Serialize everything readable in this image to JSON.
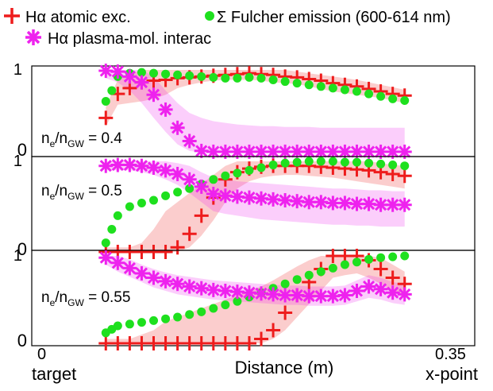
{
  "legend": {
    "items": [
      {
        "name": "Hα atomic exc.",
        "color": "#ee1c1c",
        "marker": "plus-icon"
      },
      {
        "name": "Σ Fulcher emission (600-614 nm)",
        "color": "#1ee01e",
        "marker": "circle-icon"
      },
      {
        "name": "Hα plasma-mol. interac",
        "color": "#ee22ee",
        "marker": "asterisk-icon"
      }
    ]
  },
  "axes": {
    "xlabel": "Distance (m)",
    "x_start_label": "0",
    "x_end_label": "0.35",
    "x_start_note": "target",
    "x_end_note": "x-point",
    "xlim": [
      0,
      0.35
    ],
    "ylim": [
      0,
      1
    ]
  },
  "chart_data": [
    {
      "type": "line",
      "panel_label": {
        "n": "n",
        "n_sub": "e",
        "slash": "/",
        "ngw": "n",
        "ngw_sub": "GW",
        "eq": " = 0.4"
      },
      "ytick_top": "1",
      "ytick_bottom": "0",
      "series": [
        {
          "name": "Hα atomic exc.",
          "color": "#ee1c1c",
          "x": [
            0.05,
            0.06,
            0.07,
            0.08,
            0.09,
            0.1,
            0.11,
            0.12,
            0.13,
            0.14,
            0.15,
            0.16,
            0.17,
            0.18,
            0.19,
            0.2,
            0.21,
            0.22,
            0.23,
            0.24,
            0.25,
            0.26,
            0.27,
            0.28,
            0.29,
            0.3
          ],
          "y": [
            0.42,
            0.71,
            0.78,
            0.85,
            0.87,
            0.88,
            0.9,
            0.91,
            0.92,
            0.93,
            0.94,
            0.95,
            0.96,
            0.95,
            0.94,
            0.92,
            0.91,
            0.89,
            0.87,
            0.84,
            0.82,
            0.8,
            0.77,
            0.74,
            0.71,
            0.69
          ],
          "band_low": [
            0.32,
            0.58,
            0.6,
            0.62,
            0.65,
            0.7,
            0.78,
            0.82,
            0.85,
            0.87,
            0.88,
            0.88,
            0.88,
            0.87,
            0.85,
            0.84,
            0.83,
            0.8,
            0.77,
            0.74,
            0.72,
            0.7,
            0.68,
            0.66,
            0.63,
            0.6
          ],
          "band_high": [
            0.55,
            0.88,
            0.95,
            1.0,
            1.0,
            1.0,
            1.0,
            1.0,
            1.0,
            1.0,
            1.0,
            1.0,
            1.0,
            1.0,
            1.0,
            1.0,
            0.98,
            0.96,
            0.94,
            0.92,
            0.9,
            0.88,
            0.85,
            0.82,
            0.79,
            0.76
          ]
        },
        {
          "name": "Σ Fulcher emission (600-614 nm)",
          "color": "#1ee01e",
          "x": [
            0.05,
            0.055,
            0.06,
            0.07,
            0.08,
            0.09,
            0.1,
            0.11,
            0.12,
            0.13,
            0.14,
            0.15,
            0.16,
            0.17,
            0.18,
            0.19,
            0.2,
            0.21,
            0.22,
            0.23,
            0.24,
            0.25,
            0.26,
            0.27,
            0.28,
            0.29,
            0.3
          ],
          "y": [
            0.62,
            0.75,
            0.92,
            0.96,
            0.97,
            0.96,
            0.95,
            0.94,
            0.93,
            0.92,
            0.91,
            0.9,
            0.9,
            0.91,
            0.9,
            0.88,
            0.86,
            0.84,
            0.82,
            0.8,
            0.78,
            0.76,
            0.74,
            0.71,
            0.68,
            0.65,
            0.63
          ]
        },
        {
          "name": "Hα plasma-mol. interac",
          "color": "#ee22ee",
          "x": [
            0.05,
            0.06,
            0.07,
            0.08,
            0.09,
            0.1,
            0.11,
            0.12,
            0.13,
            0.14,
            0.15,
            0.16,
            0.17,
            0.18,
            0.19,
            0.2,
            0.21,
            0.22,
            0.23,
            0.24,
            0.25,
            0.26,
            0.27,
            0.28,
            0.29,
            0.3
          ],
          "y": [
            0.99,
            0.98,
            0.92,
            0.85,
            0.7,
            0.52,
            0.3,
            0.14,
            0.02,
            0.01,
            0.01,
            0.01,
            0.01,
            0.01,
            0.01,
            0.01,
            0.01,
            0.01,
            0.01,
            0.01,
            0.01,
            0.01,
            0.01,
            0.01,
            0.01,
            0.01
          ],
          "band_low": [
            0.9,
            0.85,
            0.75,
            0.6,
            0.42,
            0.25,
            0.1,
            0.02,
            0.0,
            0.0,
            0.0,
            0.0,
            0.0,
            0.0,
            0.0,
            0.0,
            0.0,
            0.0,
            0.0,
            0.0,
            0.0,
            0.0,
            0.0,
            0.0,
            0.0,
            0.0
          ],
          "band_high": [
            1.0,
            1.0,
            1.0,
            1.0,
            0.92,
            0.75,
            0.6,
            0.48,
            0.42,
            0.38,
            0.36,
            0.34,
            0.33,
            0.32,
            0.32,
            0.31,
            0.31,
            0.31,
            0.3,
            0.3,
            0.3,
            0.3,
            0.3,
            0.3,
            0.3,
            0.3
          ]
        }
      ]
    },
    {
      "type": "line",
      "panel_label": {
        "n": "n",
        "n_sub": "e",
        "slash": "/",
        "ngw": "n",
        "ngw_sub": "GW",
        "eq": " = 0.5"
      },
      "ytick_top": "1",
      "ytick_bottom": "0",
      "series": [
        {
          "name": "Hα atomic exc.",
          "color": "#ee1c1c",
          "x": [
            0.05,
            0.06,
            0.07,
            0.08,
            0.09,
            0.1,
            0.11,
            0.12,
            0.13,
            0.14,
            0.15,
            0.16,
            0.17,
            0.18,
            0.19,
            0.2,
            0.21,
            0.22,
            0.23,
            0.24,
            0.25,
            0.26,
            0.27,
            0.28,
            0.29,
            0.3
          ],
          "y": [
            0.0,
            0.0,
            0.0,
            0.0,
            0.0,
            0.0,
            0.05,
            0.2,
            0.4,
            0.6,
            0.8,
            0.88,
            0.92,
            0.94,
            0.95,
            0.95,
            0.95,
            0.95,
            0.94,
            0.93,
            0.92,
            0.91,
            0.9,
            0.88,
            0.86,
            0.84
          ],
          "band_low": [
            0.0,
            0.0,
            0.0,
            0.0,
            0.0,
            0.0,
            0.0,
            0.05,
            0.18,
            0.35,
            0.55,
            0.7,
            0.78,
            0.82,
            0.84,
            0.85,
            0.85,
            0.84,
            0.83,
            0.82,
            0.8,
            0.78,
            0.76,
            0.74,
            0.72,
            0.7
          ],
          "band_high": [
            0.05,
            0.05,
            0.05,
            0.1,
            0.25,
            0.45,
            0.55,
            0.65,
            0.75,
            0.85,
            0.95,
            1.0,
            1.0,
            1.0,
            1.0,
            1.0,
            1.0,
            1.0,
            1.0,
            1.0,
            1.0,
            1.0,
            1.0,
            0.98,
            0.96,
            0.95
          ]
        },
        {
          "name": "Σ Fulcher emission (600-614 nm)",
          "color": "#1ee01e",
          "x": [
            0.05,
            0.055,
            0.06,
            0.07,
            0.08,
            0.09,
            0.1,
            0.11,
            0.12,
            0.13,
            0.14,
            0.15,
            0.16,
            0.17,
            0.18,
            0.19,
            0.2,
            0.21,
            0.22,
            0.23,
            0.24,
            0.25,
            0.26,
            0.27,
            0.28,
            0.29,
            0.3
          ],
          "y": [
            0.1,
            0.25,
            0.4,
            0.5,
            0.54,
            0.57,
            0.62,
            0.66,
            0.7,
            0.75,
            0.8,
            0.84,
            0.87,
            0.9,
            0.93,
            0.96,
            0.98,
            0.99,
            1.0,
            1.0,
            1.0,
            0.99,
            0.99,
            0.98,
            0.97,
            0.96,
            0.95
          ]
        },
        {
          "name": "Hα plasma-mol. interac",
          "color": "#ee22ee",
          "x": [
            0.05,
            0.06,
            0.07,
            0.08,
            0.09,
            0.1,
            0.11,
            0.12,
            0.13,
            0.14,
            0.15,
            0.16,
            0.17,
            0.18,
            0.19,
            0.2,
            0.21,
            0.22,
            0.23,
            0.24,
            0.25,
            0.26,
            0.27,
            0.28,
            0.29,
            0.3
          ],
          "y": [
            0.95,
            0.96,
            0.96,
            0.95,
            0.93,
            0.9,
            0.86,
            0.8,
            0.72,
            0.64,
            0.62,
            0.61,
            0.6,
            0.59,
            0.58,
            0.57,
            0.56,
            0.55,
            0.55,
            0.54,
            0.54,
            0.53,
            0.53,
            0.52,
            0.52,
            0.52
          ],
          "band_low": [
            0.9,
            0.9,
            0.9,
            0.88,
            0.85,
            0.8,
            0.74,
            0.65,
            0.55,
            0.45,
            0.42,
            0.4,
            0.38,
            0.36,
            0.35,
            0.34,
            0.33,
            0.32,
            0.31,
            0.3,
            0.3,
            0.29,
            0.29,
            0.28,
            0.28,
            0.28
          ],
          "band_high": [
            1.0,
            1.0,
            1.0,
            1.0,
            1.0,
            1.0,
            0.98,
            0.95,
            0.88,
            0.82,
            0.8,
            0.78,
            0.77,
            0.76,
            0.75,
            0.74,
            0.73,
            0.72,
            0.71,
            0.7,
            0.7,
            0.69,
            0.68,
            0.68,
            0.67,
            0.67
          ]
        }
      ]
    },
    {
      "type": "line",
      "panel_label": {
        "n": "n",
        "n_sub": "e",
        "slash": "/",
        "ngw": "n",
        "ngw_sub": "GW",
        "eq": " = 0.55"
      },
      "ytick_top": "1",
      "ytick_bottom": "0",
      "series": [
        {
          "name": "Hα atomic exc.",
          "color": "#ee1c1c",
          "x": [
            0.05,
            0.06,
            0.07,
            0.08,
            0.09,
            0.1,
            0.11,
            0.12,
            0.13,
            0.14,
            0.15,
            0.16,
            0.17,
            0.18,
            0.19,
            0.2,
            0.21,
            0.22,
            0.23,
            0.24,
            0.25,
            0.26,
            0.27,
            0.28,
            0.29,
            0.3
          ],
          "y": [
            0.0,
            0.0,
            0.0,
            0.0,
            0.0,
            0.0,
            0.0,
            0.0,
            0.0,
            0.0,
            0.0,
            0.0,
            0.0,
            0.05,
            0.15,
            0.35,
            0.55,
            0.7,
            0.85,
            1.0,
            1.0,
            1.0,
            0.95,
            0.85,
            0.75,
            0.68
          ],
          "band_low": [
            0.0,
            0.0,
            0.0,
            0.0,
            0.0,
            0.0,
            0.0,
            0.0,
            0.0,
            0.0,
            0.0,
            0.0,
            0.0,
            0.0,
            0.05,
            0.15,
            0.3,
            0.45,
            0.6,
            0.75,
            0.78,
            0.8,
            0.75,
            0.68,
            0.6,
            0.55
          ],
          "band_high": [
            0.05,
            0.05,
            0.05,
            0.1,
            0.15,
            0.25,
            0.3,
            0.35,
            0.4,
            0.45,
            0.5,
            0.55,
            0.6,
            0.65,
            0.72,
            0.8,
            0.88,
            0.95,
            1.0,
            1.0,
            1.0,
            1.0,
            1.0,
            0.98,
            0.9,
            0.82
          ]
        },
        {
          "name": "Σ Fulcher emission (600-614 nm)",
          "color": "#1ee01e",
          "x": [
            0.05,
            0.055,
            0.06,
            0.07,
            0.08,
            0.09,
            0.1,
            0.11,
            0.12,
            0.13,
            0.14,
            0.15,
            0.16,
            0.17,
            0.18,
            0.19,
            0.2,
            0.21,
            0.22,
            0.23,
            0.24,
            0.25,
            0.26,
            0.27,
            0.28,
            0.29,
            0.3
          ],
          "y": [
            0.12,
            0.16,
            0.2,
            0.22,
            0.24,
            0.26,
            0.28,
            0.3,
            0.33,
            0.36,
            0.4,
            0.44,
            0.48,
            0.53,
            0.58,
            0.63,
            0.68,
            0.73,
            0.78,
            0.82,
            0.86,
            0.9,
            0.93,
            0.96,
            0.98,
            0.99,
            1.0
          ]
        },
        {
          "name": "Hα plasma-mol. interac",
          "color": "#ee22ee",
          "x": [
            0.05,
            0.06,
            0.07,
            0.08,
            0.09,
            0.1,
            0.11,
            0.12,
            0.13,
            0.14,
            0.15,
            0.16,
            0.17,
            0.18,
            0.19,
            0.2,
            0.21,
            0.22,
            0.23,
            0.24,
            0.25,
            0.26,
            0.27,
            0.28,
            0.29,
            0.3
          ],
          "y": [
            0.98,
            0.92,
            0.86,
            0.8,
            0.75,
            0.71,
            0.68,
            0.65,
            0.63,
            0.61,
            0.6,
            0.59,
            0.58,
            0.57,
            0.56,
            0.55,
            0.55,
            0.54,
            0.54,
            0.54,
            0.55,
            0.6,
            0.65,
            0.62,
            0.58,
            0.56
          ],
          "band_low": [
            0.9,
            0.82,
            0.76,
            0.7,
            0.64,
            0.6,
            0.56,
            0.54,
            0.52,
            0.5,
            0.49,
            0.48,
            0.47,
            0.46,
            0.45,
            0.44,
            0.44,
            0.43,
            0.43,
            0.43,
            0.44,
            0.48,
            0.52,
            0.5,
            0.46,
            0.44
          ],
          "band_high": [
            1.0,
            1.0,
            0.96,
            0.9,
            0.85,
            0.81,
            0.78,
            0.76,
            0.74,
            0.72,
            0.71,
            0.7,
            0.69,
            0.68,
            0.67,
            0.66,
            0.66,
            0.65,
            0.65,
            0.65,
            0.66,
            0.72,
            0.78,
            0.75,
            0.7,
            0.68
          ]
        }
      ]
    }
  ]
}
